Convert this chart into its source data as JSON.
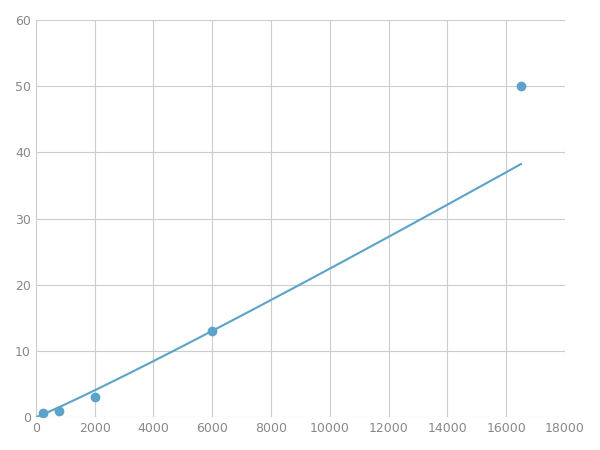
{
  "x_points": [
    250,
    800,
    2000,
    6000,
    16500
  ],
  "y_points": [
    0.7,
    1.0,
    3.0,
    13.0,
    50.0
  ],
  "line_color": "#5ba3c9",
  "marker_color": "#5ba3c9",
  "marker_size": 6,
  "line_width": 1.5,
  "xlim": [
    0,
    18000
  ],
  "ylim": [
    0,
    60
  ],
  "xticks": [
    0,
    2000,
    4000,
    6000,
    8000,
    10000,
    12000,
    14000,
    16000,
    18000
  ],
  "yticks": [
    0,
    10,
    20,
    30,
    40,
    50,
    60
  ],
  "grid_color": "#cccccc",
  "background_color": "#ffffff",
  "figsize": [
    6.0,
    4.5
  ],
  "dpi": 100
}
